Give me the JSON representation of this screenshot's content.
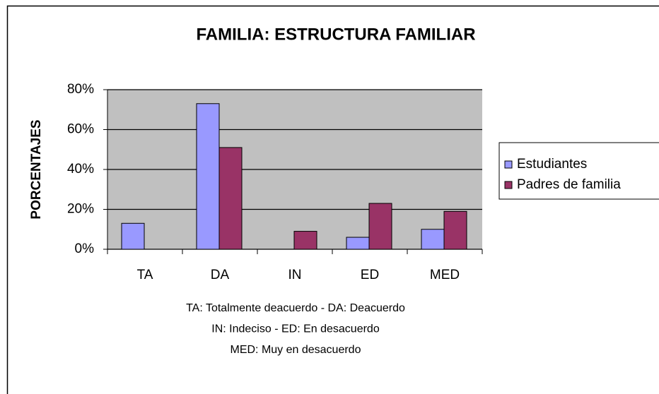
{
  "chart_data": {
    "type": "bar",
    "title": "FAMILIA: ESTRUCTURA FAMILIAR",
    "y_label": "PORCENTAJES",
    "categories": [
      "TA",
      "DA",
      "IN",
      "ED",
      "MED"
    ],
    "series": [
      {
        "name": "Estudiantes",
        "color": "#9999ff",
        "values": [
          13,
          73,
          0,
          6,
          10
        ]
      },
      {
        "name": "Padres de familia",
        "color": "#993366",
        "values": [
          0,
          51,
          9,
          23,
          19
        ]
      }
    ],
    "ylim": [
      0,
      80
    ],
    "yticks": [
      {
        "value": 0,
        "label": "0%"
      },
      {
        "value": 20,
        "label": "20%"
      },
      {
        "value": 40,
        "label": "40%"
      },
      {
        "value": 60,
        "label": "60%"
      },
      {
        "value": 80,
        "label": "80%"
      }
    ],
    "grid": true,
    "legend": "right",
    "annotations": [
      "TA: Totalmente deacuerdo - DA: Deacuerdo",
      "IN: Indeciso - ED: En desacuerdo",
      "MED: Muy en desacuerdo"
    ]
  }
}
